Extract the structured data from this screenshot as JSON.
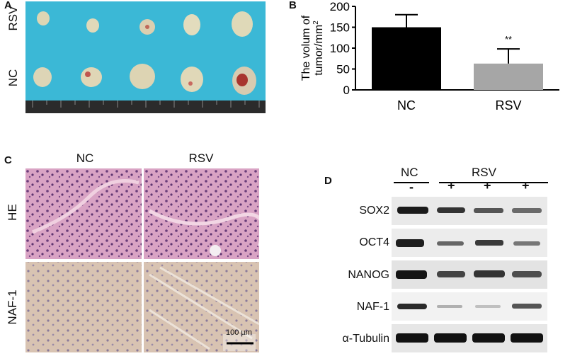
{
  "panels": {
    "a": {
      "letter": "A",
      "rows": [
        "RSV",
        "NC"
      ]
    },
    "b": {
      "letter": "B"
    },
    "c": {
      "letter": "C",
      "columns": [
        "NC",
        "RSV"
      ],
      "rows": [
        "HE",
        "NAF-1"
      ],
      "scale_bar": "100 µm"
    },
    "d": {
      "letter": "D",
      "groups": [
        "NC",
        "RSV"
      ],
      "lane_marks": [
        "-",
        "+",
        "+",
        "+"
      ],
      "proteins": [
        "SOX2",
        "OCT4",
        "NANOG",
        "NAF-1",
        "α-Tubulin"
      ]
    }
  },
  "colors": {
    "nc_bar": "#000000",
    "rsv_bar": "#a6a6a6",
    "tray": "#3bb8d6",
    "he_stain": "#d9a3c4",
    "ihc_stain": "#d8c3b2"
  },
  "chart_data": {
    "type": "bar",
    "categories": [
      "NC",
      "RSV"
    ],
    "values": [
      150,
      63
    ],
    "errors": [
      30,
      35
    ],
    "significance": [
      "",
      "**"
    ],
    "ylabel_line1": "The volum of",
    "ylabel_line2": "tumor/mm",
    "ylabel_sup": "2",
    "ylim": [
      0,
      200
    ],
    "yticks": [
      "0",
      "50",
      "100",
      "150",
      "200"
    ]
  }
}
